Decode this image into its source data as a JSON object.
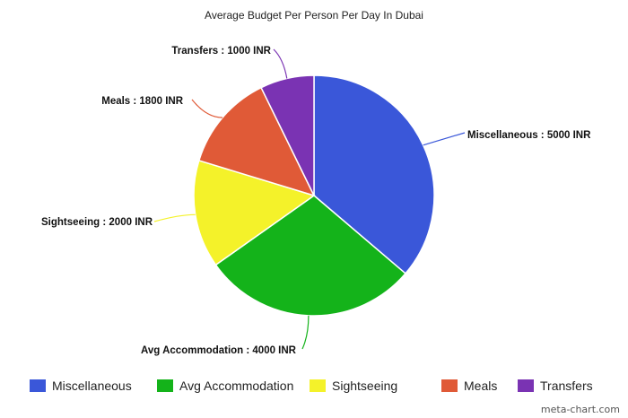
{
  "chart_data": {
    "type": "pie",
    "title": "Average Budget Per Person Per Day In Dubai",
    "slices": [
      {
        "name": "Miscellaneous",
        "value": 5000,
        "label": "Miscellaneous : 5000 INR",
        "color": "#3a57d9"
      },
      {
        "name": "Avg Accommodation",
        "value": 4000,
        "label": "Avg Accommodation : 4000 INR",
        "color": "#14b31a"
      },
      {
        "name": "Sightseeing",
        "value": 2000,
        "label": "Sightseeing : 2000 INR",
        "color": "#f4f22a"
      },
      {
        "name": "Meals",
        "value": 1800,
        "label": "Meals : 1800 INR",
        "color": "#e05a37"
      },
      {
        "name": "Transfers",
        "value": 1000,
        "label": "Transfers : 1000 INR",
        "color": "#7a33b3"
      }
    ],
    "legend_position": "bottom"
  },
  "watermark": "meta-chart.com"
}
